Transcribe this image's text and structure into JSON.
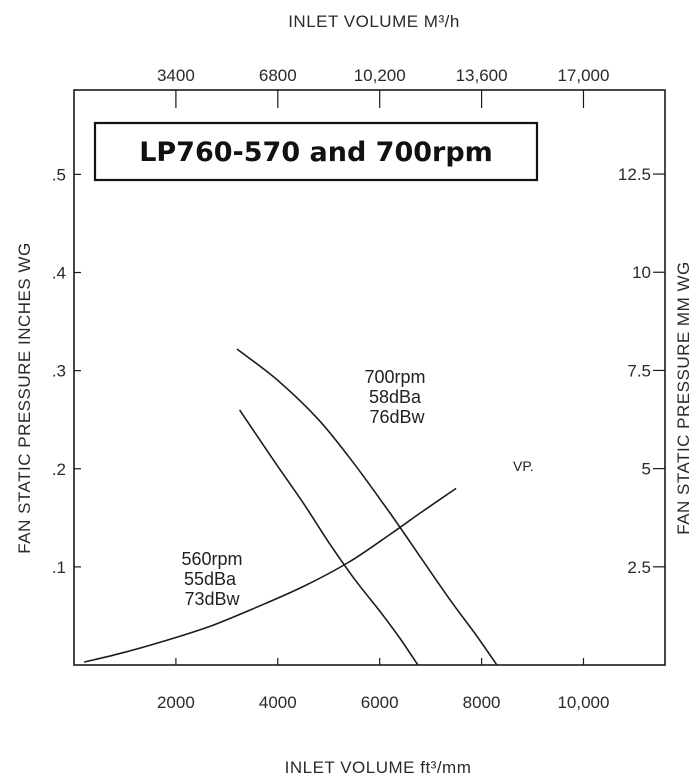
{
  "chart_data": {
    "type": "line",
    "title": "LP760-570 and 700rpm",
    "xlabel": "INLET VOLUME ft³/mm",
    "ylabel": "FAN STATIC PRESSURE INCHES WG",
    "x2label": "INLET VOLUME M³/h",
    "y2label": "FAN STATIC PRESSURE MM WG",
    "x_ticks": [
      "2000",
      "4000",
      "6000",
      "8000",
      "10,000"
    ],
    "x_tick_values": [
      2000,
      4000,
      6000,
      8000,
      10000
    ],
    "y_ticks": [
      ".1",
      ".2",
      ".3",
      ".4",
      ".5"
    ],
    "y_tick_values": [
      0.1,
      0.2,
      0.3,
      0.4,
      0.5
    ],
    "x2_ticks": [
      "3400",
      "6800",
      "10,200",
      "13,600",
      "17,000"
    ],
    "x2_tick_values": [
      3400,
      6800,
      10200,
      13600,
      17000
    ],
    "y2_ticks": [
      "2.5",
      "5",
      "7.5",
      "10",
      "12.5"
    ],
    "y2_tick_values": [
      2.5,
      5,
      7.5,
      10,
      12.5
    ],
    "xlim": [
      0,
      11600
    ],
    "ylim": [
      0,
      0.586
    ],
    "x2lim": [
      0,
      19720
    ],
    "y2lim": [
      0,
      14.64
    ],
    "grid": false,
    "series": [
      {
        "name": "560rpm",
        "x": [
          3250,
          3900,
          4500,
          5000,
          5500,
          6000,
          6400,
          6750
        ],
        "y": [
          0.26,
          0.21,
          0.165,
          0.125,
          0.088,
          0.055,
          0.027,
          0.0
        ]
      },
      {
        "name": "700rpm",
        "x": [
          3200,
          4000,
          4800,
          5500,
          6200,
          6800,
          7400,
          7900,
          8300
        ],
        "y": [
          0.322,
          0.29,
          0.25,
          0.205,
          0.155,
          0.11,
          0.065,
          0.03,
          0.0
        ]
      },
      {
        "name": "VP.",
        "x": [
          200,
          1000,
          2000,
          2700,
          3500,
          4500,
          5400,
          6200,
          6800,
          7500
        ],
        "y": [
          0.003,
          0.013,
          0.028,
          0.04,
          0.057,
          0.08,
          0.105,
          0.133,
          0.155,
          0.18
        ]
      }
    ],
    "annotations": {
      "title_box": "LP760-570 and 700rpm",
      "vp_label": "VP.",
      "rpm560": [
        "560rpm",
        "55dBa",
        "73dBw"
      ],
      "rpm700": [
        "700rpm",
        "58dBa",
        "76dBw"
      ]
    }
  }
}
